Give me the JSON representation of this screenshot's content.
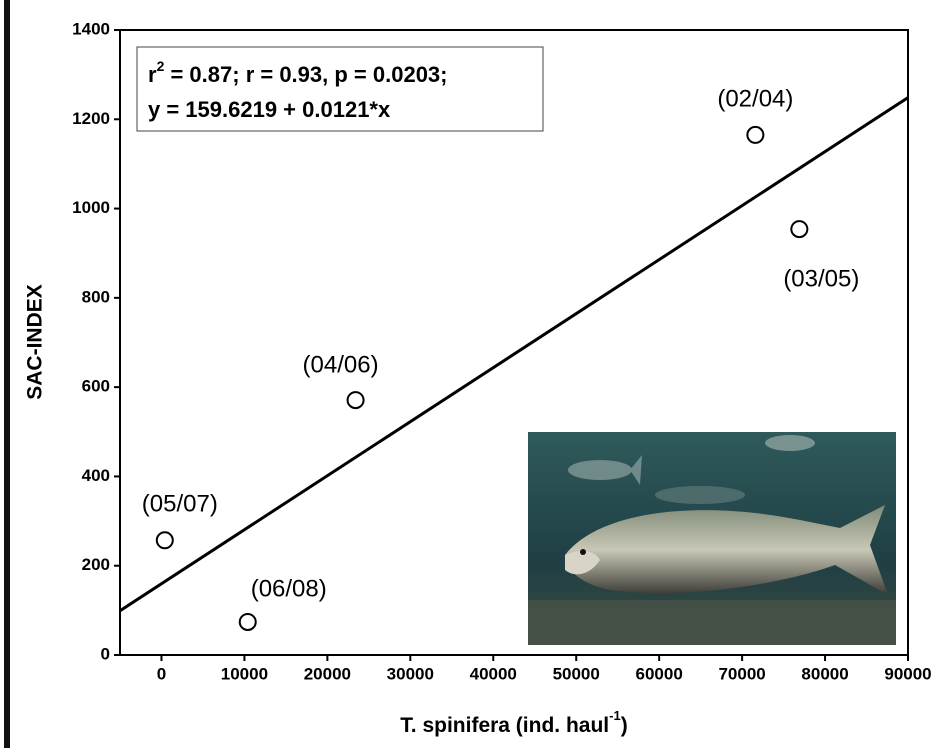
{
  "chart_data": {
    "type": "scatter",
    "x_label": {
      "main": "T. spinifera (ind. haul",
      "sup": "-1",
      "end": ")"
    },
    "y_label": "SAC-INDEX",
    "annotation": {
      "line1_start": "r",
      "line1_sup": "2",
      "line1_end": " = 0.87;  r = 0.93, p = 0.0203;",
      "line2": "y = 159.6219 + 0.0121*x"
    },
    "x": [
      400,
      10400,
      23400,
      71600,
      76900
    ],
    "values": [
      257,
      74,
      571,
      1165,
      954
    ],
    "point_labels": [
      "(05/07)",
      "(06/08)",
      "(04/06)",
      "(02/04)",
      "(03/05)"
    ],
    "fit": {
      "intercept": 159.6219,
      "slope": 0.0121
    },
    "xlim": [
      -5000,
      90000
    ],
    "ylim": [
      0,
      1400
    ],
    "xticks": [
      0,
      10000,
      20000,
      30000,
      40000,
      50000,
      60000,
      70000,
      80000,
      90000
    ],
    "yticks": [
      0,
      200,
      400,
      600,
      800,
      1000,
      1200,
      1400
    ],
    "color": "#000000"
  }
}
